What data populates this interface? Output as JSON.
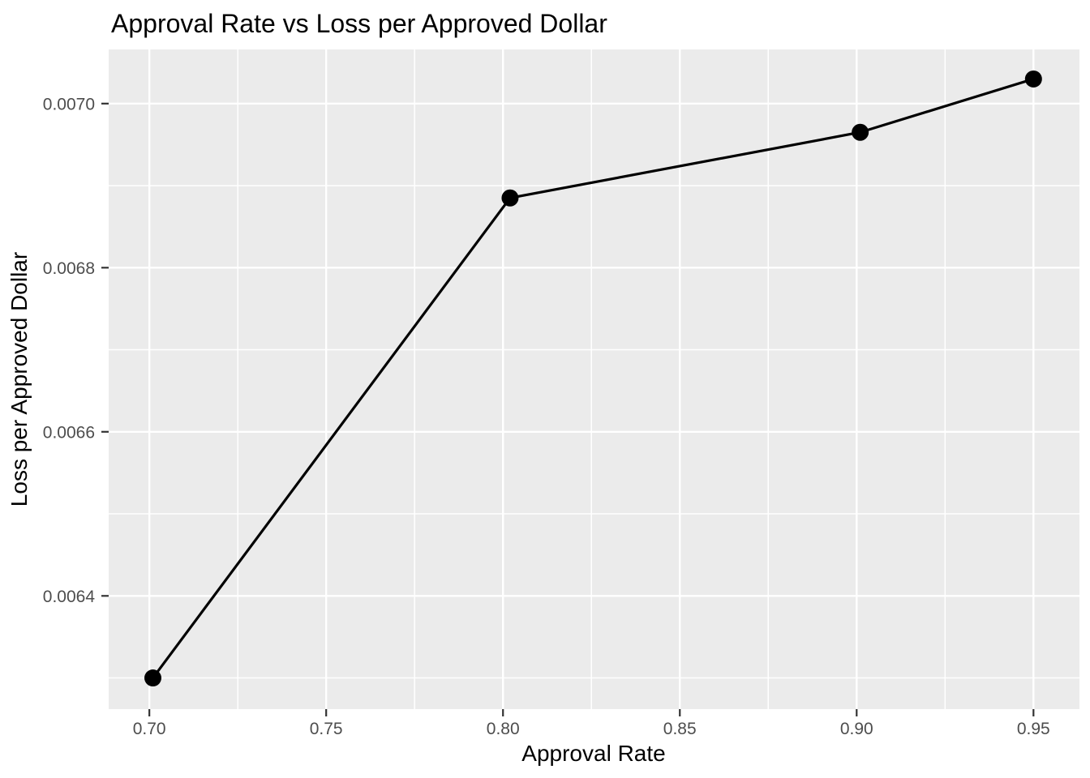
{
  "chart_data": {
    "type": "line",
    "title": "Approval Rate vs Loss per Approved Dollar",
    "xlabel": "Approval Rate",
    "ylabel": "Loss per Approved Dollar",
    "series": [
      {
        "name": "loss-per-approved-dollar",
        "x": [
          0.701,
          0.802,
          0.901,
          0.95
        ],
        "y": [
          0.0063,
          0.006885,
          0.006965,
          0.00703
        ]
      }
    ],
    "xlim": [
      0.6885,
      0.963
    ],
    "ylim": [
      0.006262,
      0.007066
    ],
    "xticks": [
      "0.70",
      "0.75",
      "0.80",
      "0.85",
      "0.90",
      "0.95"
    ],
    "yticks": [
      "0.0064",
      "0.0066",
      "0.0068",
      "0.0070"
    ],
    "x_minor_gridlines": [
      0.725,
      0.775,
      0.825,
      0.875,
      0.925
    ],
    "y_minor_gridlines": [
      0.0063,
      0.0065,
      0.0067,
      0.0069
    ],
    "grid": true,
    "legend": "none",
    "style": "ggplot2-theme-grey",
    "colors": {
      "background": "#FFFFFF",
      "panel_bg": "#EBEBEB",
      "gridline": "#FFFFFF",
      "series": "#000000",
      "tick_label": "#4D4D4D",
      "tick_mark": "#333333",
      "axis_title": "#000000",
      "title": "#000000"
    }
  }
}
